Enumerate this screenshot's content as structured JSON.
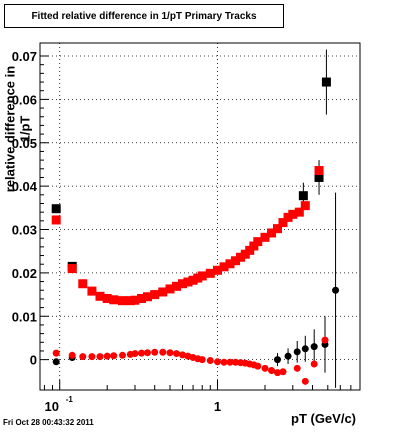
{
  "chart_data": {
    "type": "scatter",
    "title": "Fitted relative difference in 1/pT  Primary Tracks",
    "xlabel": "pT (GeV/c)",
    "ylabel": "relative difference in 1/pT",
    "x_scale": "log",
    "xlim": [
      0.075,
      8
    ],
    "ylim": [
      -0.007,
      0.073
    ],
    "x_tick_labels": [
      {
        "value": 0.1,
        "base": "10",
        "exp": "-1"
      },
      {
        "value": 1,
        "text": "1"
      }
    ],
    "y_ticks": [
      0,
      0.01,
      0.02,
      0.03,
      0.04,
      0.05,
      0.06,
      0.07
    ],
    "y_tick_labels": [
      "0",
      "0.01",
      "0.02",
      "0.03",
      "0.04",
      "0.05",
      "0.06",
      "0.07"
    ],
    "grid": true,
    "colors": {
      "series_black": "#000000",
      "series_red": "#ff0000",
      "grid": "#000000"
    },
    "series": [
      {
        "marker": "square",
        "color": "#000000",
        "x": [
          0.095,
          0.12,
          3.5,
          4.4
        ],
        "y": [
          0.0348,
          0.0215,
          0.0378,
          0.042
        ],
        "ex": [
          0.004,
          0.008,
          0.15,
          0.2
        ],
        "ey": [
          0.0008,
          0.0005,
          0.003,
          0.004
        ],
        "x2": [
          4.9
        ],
        "y2": [
          0.064
        ],
        "ey2": [
          0.0075
        ]
      },
      {
        "marker": "square",
        "color": "#ff0000",
        "x": [
          0.095,
          0.12,
          0.14,
          0.16,
          0.18,
          0.2,
          0.22,
          0.25,
          0.28,
          0.3,
          0.33,
          0.36,
          0.4,
          0.45,
          0.5,
          0.55,
          0.6,
          0.65,
          0.7,
          0.75,
          0.8,
          0.9,
          1.0,
          1.1,
          1.2,
          1.3,
          1.4,
          1.5,
          1.6,
          1.7,
          1.8,
          2.0,
          2.2,
          2.4,
          2.6,
          2.8,
          3.0,
          3.3,
          3.6,
          4.4
        ],
        "y": [
          0.0322,
          0.021,
          0.0175,
          0.0158,
          0.0146,
          0.0141,
          0.0138,
          0.0136,
          0.0136,
          0.0137,
          0.0141,
          0.0145,
          0.015,
          0.0156,
          0.0163,
          0.0169,
          0.0175,
          0.0179,
          0.0183,
          0.0188,
          0.0193,
          0.0199,
          0.0206,
          0.0214,
          0.0221,
          0.0228,
          0.0236,
          0.0243,
          0.0252,
          0.0262,
          0.0272,
          0.0282,
          0.0292,
          0.0302,
          0.0316,
          0.0328,
          0.0335,
          0.034,
          0.0355,
          0.0436
        ]
      },
      {
        "marker": "circle",
        "color": "#000000",
        "x": [
          0.095,
          0.12,
          2.4,
          2.8,
          3.2,
          3.6,
          4.1,
          4.8,
          5.6
        ],
        "y": [
          -0.0005,
          0.0005,
          0.0,
          0.0008,
          0.0018,
          0.0025,
          0.003,
          0.0035,
          0.016
        ],
        "ey": [
          0.0005,
          0.0004,
          0.0015,
          0.0018,
          0.0025,
          0.003,
          0.004,
          0.0065,
          0.0225
        ]
      },
      {
        "marker": "circle",
        "color": "#ff0000",
        "x": [
          0.095,
          0.12,
          0.14,
          0.16,
          0.18,
          0.2,
          0.22,
          0.25,
          0.28,
          0.3,
          0.33,
          0.36,
          0.4,
          0.45,
          0.5,
          0.55,
          0.6,
          0.65,
          0.7,
          0.75,
          0.8,
          0.9,
          1.0,
          1.1,
          1.2,
          1.3,
          1.4,
          1.5,
          1.6,
          1.7,
          1.8,
          2.0,
          2.2,
          2.4,
          2.6,
          3.2,
          3.6,
          4.1,
          4.8
        ],
        "y": [
          0.0015,
          0.001,
          0.0007,
          0.0007,
          0.0007,
          0.0008,
          0.0009,
          0.001,
          0.0012,
          0.0014,
          0.0015,
          0.0016,
          0.0017,
          0.0017,
          0.0016,
          0.0014,
          0.0011,
          0.0008,
          0.0005,
          0.0002,
          0.0,
          -0.0002,
          -0.0005,
          -0.0006,
          -0.0006,
          -0.0006,
          -0.0007,
          -0.0008,
          -0.001,
          -0.0012,
          -0.0015,
          -0.002,
          -0.0025,
          -0.003,
          -0.0028,
          -0.002,
          -0.005,
          -0.001,
          0.0045
        ]
      }
    ]
  },
  "footer": {
    "timestamp": "Fri Oct 28 00:43:32 2011"
  }
}
